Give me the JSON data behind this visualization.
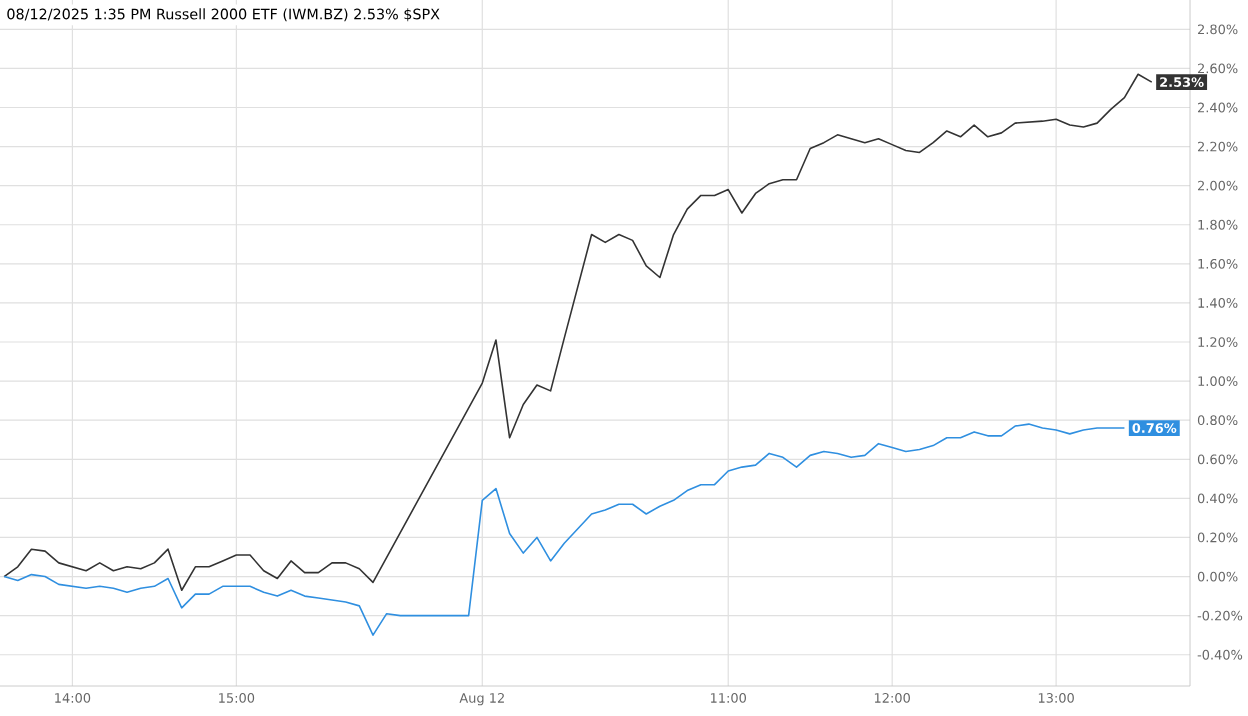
{
  "chart_data": {
    "type": "line",
    "title": "08/12/2025  1:35 PM Russell 2000 ETF (IWM.BZ) 2.53% $SPX",
    "categories": [
      null,
      null,
      null,
      null,
      null,
      "14:00",
      null,
      null,
      null,
      null,
      null,
      null,
      null,
      null,
      null,
      null,
      null,
      "15:00",
      null,
      null,
      null,
      null,
      null,
      null,
      null,
      null,
      null,
      null,
      null,
      null,
      null,
      null,
      null,
      null,
      null,
      "Aug 12",
      null,
      null,
      null,
      null,
      null,
      null,
      null,
      null,
      null,
      null,
      null,
      null,
      null,
      null,
      null,
      null,
      null,
      "11:00",
      null,
      null,
      null,
      null,
      null,
      null,
      null,
      null,
      null,
      null,
      null,
      "12:00",
      null,
      null,
      null,
      null,
      null,
      null,
      null,
      null,
      null,
      null,
      null,
      "13:00",
      null,
      null,
      null,
      null,
      null,
      null,
      null
    ],
    "ylim": [
      -0.56,
      2.95
    ],
    "yticks": [
      {
        "value": -0.4,
        "label": "-0.40%"
      },
      {
        "value": -0.2,
        "label": "-0.20%"
      },
      {
        "value": 0,
        "label": "0.00%"
      },
      {
        "value": 0.2,
        "label": "0.20%"
      },
      {
        "value": 0.4,
        "label": "0.40%"
      },
      {
        "value": 0.6,
        "label": "0.60%"
      },
      {
        "value": 0.8,
        "label": "0.80%"
      },
      {
        "value": 1.0,
        "label": "1.00%"
      },
      {
        "value": 1.2,
        "label": "1.20%"
      },
      {
        "value": 1.4,
        "label": "1.40%"
      },
      {
        "value": 1.6,
        "label": "1.60%"
      },
      {
        "value": 1.8,
        "label": "1.80%"
      },
      {
        "value": 2.0,
        "label": "2.00%"
      },
      {
        "value": 2.2,
        "label": "2.20%"
      },
      {
        "value": 2.4,
        "label": "2.40%"
      },
      {
        "value": 2.6,
        "label": "2.60%"
      },
      {
        "value": 2.8,
        "label": "2.80%"
      }
    ],
    "grid": true,
    "series": [
      {
        "color": "#333333",
        "values": [
          0.0,
          0.05,
          0.14,
          0.13,
          0.07,
          null,
          0.03,
          0.07,
          0.03,
          0.05,
          0.04,
          0.07,
          0.14,
          -0.07,
          0.05,
          0.05,
          0.08,
          0.11,
          0.11,
          0.03,
          -0.01,
          0.08,
          0.02,
          0.02,
          0.07,
          0.07,
          0.04,
          -0.03,
          null,
          null,
          null,
          null,
          null,
          null,
          null,
          0.99,
          1.21,
          0.71,
          0.88,
          0.98,
          0.95,
          1.22,
          null,
          1.75,
          1.71,
          1.75,
          1.72,
          1.59,
          1.53,
          1.75,
          1.88,
          1.95,
          1.95,
          1.98,
          1.86,
          1.96,
          2.01,
          2.03,
          2.03,
          2.19,
          2.22,
          2.26,
          2.24,
          2.22,
          2.24,
          2.21,
          2.18,
          2.17,
          2.22,
          2.28,
          2.25,
          2.31,
          2.25,
          2.27,
          2.32,
          null,
          2.33,
          2.34,
          2.31,
          2.3,
          2.32,
          2.39,
          2.45,
          2.57,
          2.53
        ],
        "value_labels": [
          null,
          null,
          null,
          null,
          null,
          null,
          null,
          null,
          null,
          null,
          null,
          null,
          null,
          null,
          null,
          null,
          null,
          null,
          null,
          null,
          null,
          null,
          null,
          null,
          null,
          null,
          null,
          null,
          null,
          null,
          null,
          null,
          null,
          null,
          null,
          null,
          null,
          null,
          null,
          null,
          null,
          null,
          null,
          null,
          null,
          null,
          null,
          null,
          null,
          null,
          null,
          null,
          null,
          null,
          null,
          null,
          null,
          null,
          null,
          null,
          null,
          null,
          null,
          null,
          null,
          null,
          null,
          null,
          null,
          null,
          null,
          null,
          null,
          null,
          null,
          null,
          null,
          null,
          null,
          null,
          null,
          null,
          null,
          null,
          "2.53%"
        ]
      },
      {
        "color": "#2f8fe0",
        "values": [
          0.0,
          -0.02,
          0.01,
          0.0,
          -0.04,
          null,
          -0.06,
          -0.05,
          -0.06,
          -0.08,
          -0.06,
          -0.05,
          -0.01,
          -0.16,
          -0.09,
          -0.09,
          -0.05,
          -0.05,
          -0.05,
          -0.08,
          -0.1,
          -0.07,
          -0.1,
          -0.11,
          -0.12,
          -0.13,
          -0.15,
          -0.3,
          -0.19,
          -0.2,
          -0.2,
          -0.2,
          -0.2,
          -0.2,
          -0.2,
          0.39,
          0.45,
          0.22,
          0.12,
          0.2,
          0.08,
          0.17,
          null,
          0.32,
          0.34,
          0.37,
          0.37,
          0.32,
          0.36,
          0.39,
          0.44,
          0.47,
          0.47,
          0.54,
          0.56,
          0.57,
          0.63,
          0.61,
          0.56,
          0.62,
          0.64,
          0.63,
          0.61,
          0.62,
          0.68,
          0.66,
          0.64,
          0.65,
          0.67,
          0.71,
          0.71,
          0.74,
          0.72,
          0.72,
          0.77,
          0.78,
          0.76,
          0.75,
          0.73,
          0.75,
          0.76,
          0.76,
          0.76,
          null,
          null
        ],
        "value_labels": [
          null,
          null,
          null,
          null,
          null,
          null,
          null,
          null,
          null,
          null,
          null,
          null,
          null,
          null,
          null,
          null,
          null,
          null,
          null,
          null,
          null,
          null,
          null,
          null,
          null,
          null,
          null,
          null,
          null,
          null,
          null,
          null,
          null,
          null,
          null,
          null,
          null,
          null,
          null,
          null,
          null,
          null,
          null,
          null,
          null,
          null,
          null,
          null,
          null,
          null,
          null,
          null,
          null,
          null,
          null,
          null,
          null,
          null,
          null,
          null,
          null,
          null,
          null,
          null,
          null,
          null,
          null,
          null,
          null,
          null,
          null,
          null,
          null,
          null,
          null,
          null,
          null,
          null,
          null,
          null,
          null,
          null,
          "0.76%",
          null,
          null
        ]
      }
    ]
  }
}
